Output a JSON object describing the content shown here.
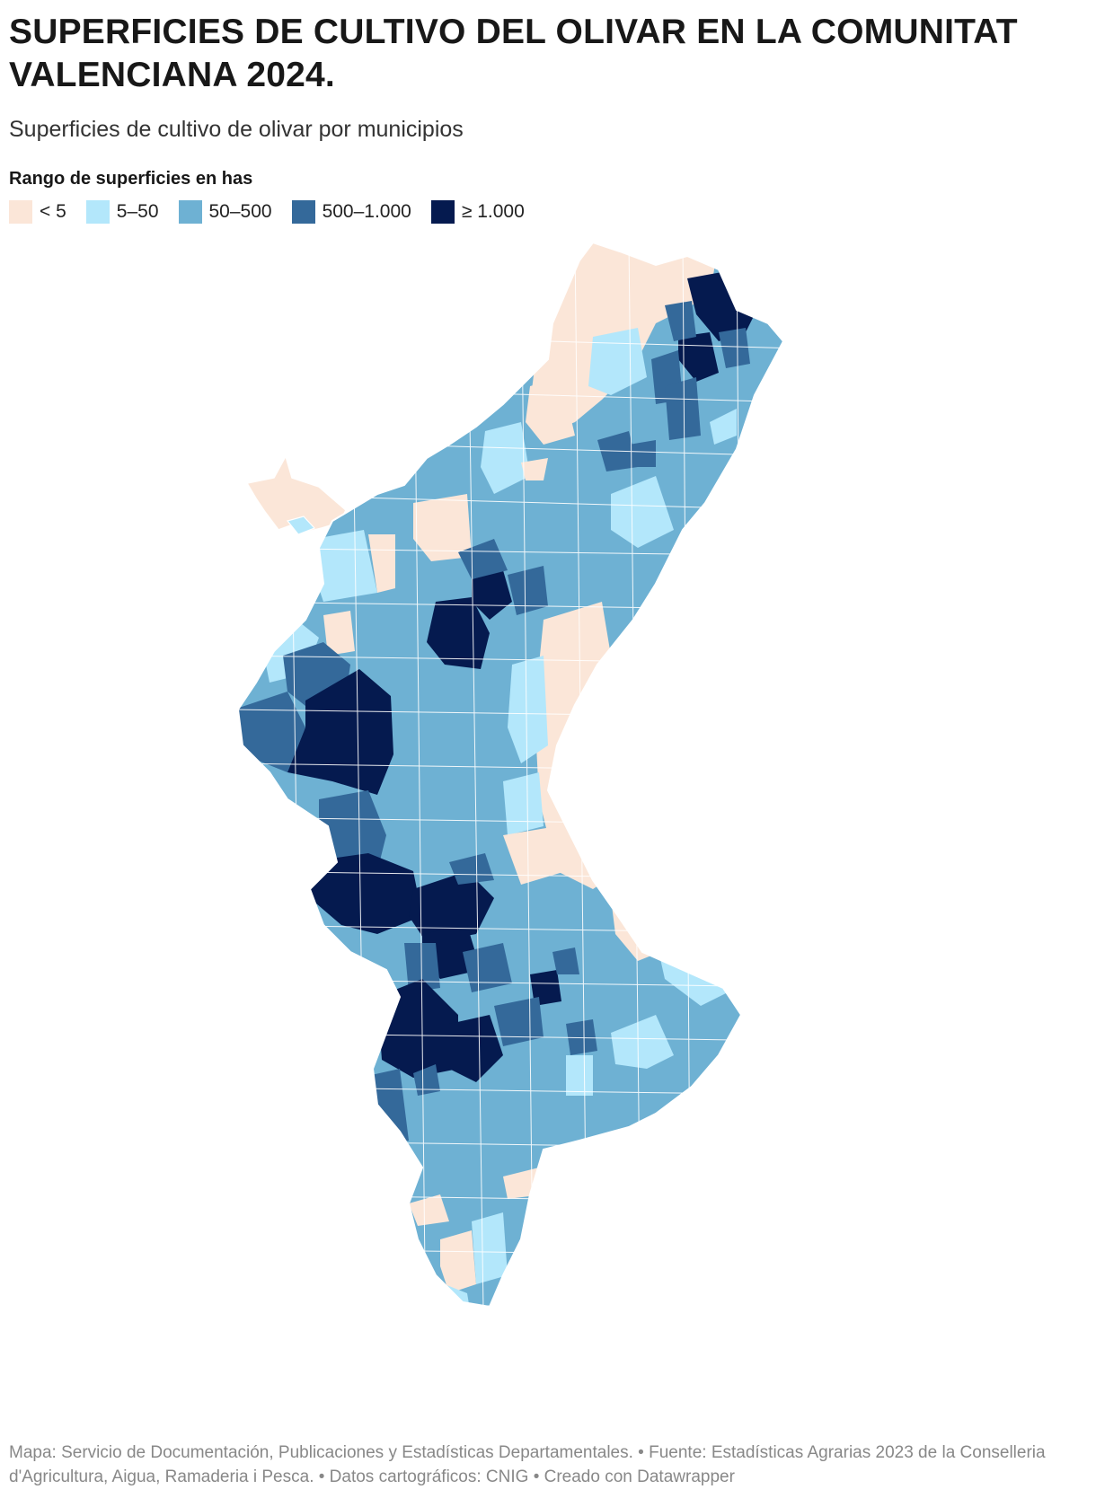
{
  "title": "SUPERFICIES DE CULTIVO DEL OLIVAR EN LA COMUNITAT VALENCIANA 2024.",
  "subtitle": "Superficies de cultivo de olivar por municipios",
  "legend": {
    "title": "Rango de superficies en has",
    "items": [
      {
        "label": "< 5",
        "color": "#fbe6d8"
      },
      {
        "label": "5–50",
        "color": "#b3e7fb"
      },
      {
        "label": "50–500",
        "color": "#6eb1d3"
      },
      {
        "label": "500–1.000",
        "color": "#34699a"
      },
      {
        "label": "≥ 1.000",
        "color": "#051a4f"
      }
    ]
  },
  "footer": "Mapa: Servicio de Documentación, Publicaciones y Estadísticas Departamentales. • Fuente: Estadísticas Agrarias 2023 de la Conselleria d'Agricultura, Aigua, Ramaderia i Pesca. • Datos cartográficos: CNIG  • Creado con Datawrapper"
}
